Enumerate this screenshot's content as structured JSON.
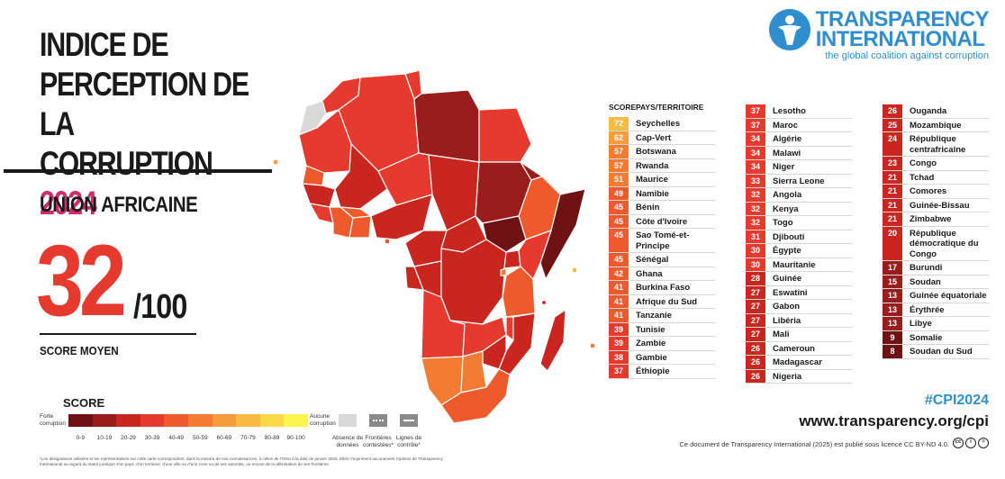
{
  "title": {
    "line1": "INDICE DE",
    "line2": "PERCEPTION DE LA",
    "line3_prefix": "CORRUPTION",
    "year": "2024"
  },
  "region": "UNION AFRICAINE",
  "average": {
    "score": "32",
    "max": "/100",
    "caption": "SCORE MOYEN"
  },
  "legend": {
    "title": "SCORE",
    "high_corruption": "Forte corruption",
    "low_corruption": "Aucune corruption",
    "ranges": [
      "0-9",
      "10-19",
      "20-29",
      "30-39",
      "40-49",
      "50-59",
      "60-69",
      "70-79",
      "80-89",
      "90-100"
    ],
    "colors": [
      "#6e1213",
      "#9a1d1d",
      "#c8261f",
      "#e63a2e",
      "#ef5a2d",
      "#f47b32",
      "#f69c3b",
      "#f8bb42",
      "#fad846",
      "#fcf54c"
    ],
    "no_data": "Absence de données",
    "disputed_borders": "Frontières contestées*",
    "control_lines": "Lignes de contrôle*",
    "no_data_color": "#d9d9d9"
  },
  "footnote": "*Les désignations utilisées et les représentations sur cette carte correspondent, dans la mesure de nos connaissances, à celles de l'ONU à la date de janvier 2025. Elles n'expriment aucunement l'opinion de Transparency International au regard du statut juridique d'un pays, d'un territoire, d'une ville ou d'une zone ou de ses autorités, ou encore de la délimitation de ses frontières.",
  "logo": {
    "line1": "TRANSPARENCY",
    "line2": "INTERNATIONAL",
    "tagline": "the global coalition against corruption"
  },
  "table_headers": {
    "score": "SCORE",
    "country": "PAYS/TERRITOIRE"
  },
  "columns": [
    [
      {
        "score": "72",
        "name": "Seychelles"
      },
      {
        "score": "62",
        "name": "Cap-Vert"
      },
      {
        "score": "57",
        "name": "Botswana"
      },
      {
        "score": "57",
        "name": "Rwanda"
      },
      {
        "score": "51",
        "name": "Maurice"
      },
      {
        "score": "49",
        "name": "Namibie"
      },
      {
        "score": "45",
        "name": "Bénin"
      },
      {
        "score": "45",
        "name": "Côte d'Ivoire"
      },
      {
        "score": "45",
        "name": "Sao Tomé-et-Principe"
      },
      {
        "score": "45",
        "name": "Sénégal"
      },
      {
        "score": "42",
        "name": "Ghana"
      },
      {
        "score": "41",
        "name": "Burkina Faso"
      },
      {
        "score": "41",
        "name": "Afrique du Sud"
      },
      {
        "score": "41",
        "name": "Tanzanie"
      },
      {
        "score": "39",
        "name": "Tunisie"
      },
      {
        "score": "39",
        "name": "Zambie"
      },
      {
        "score": "38",
        "name": "Gambie"
      },
      {
        "score": "37",
        "name": "Éthiopie"
      }
    ],
    [
      {
        "score": "37",
        "name": "Lesotho"
      },
      {
        "score": "37",
        "name": "Maroc"
      },
      {
        "score": "34",
        "name": "Algérie"
      },
      {
        "score": "34",
        "name": "Malawi"
      },
      {
        "score": "34",
        "name": "Niger"
      },
      {
        "score": "33",
        "name": "Sierra Leone"
      },
      {
        "score": "32",
        "name": "Angola"
      },
      {
        "score": "32",
        "name": "Kenya"
      },
      {
        "score": "32",
        "name": "Togo"
      },
      {
        "score": "31",
        "name": "Djibouti"
      },
      {
        "score": "30",
        "name": "Égypte"
      },
      {
        "score": "30",
        "name": "Mauritanie"
      },
      {
        "score": "28",
        "name": "Guinée"
      },
      {
        "score": "27",
        "name": "Eswatini"
      },
      {
        "score": "27",
        "name": "Gabon"
      },
      {
        "score": "27",
        "name": "Libéria"
      },
      {
        "score": "27",
        "name": "Mali"
      },
      {
        "score": "26",
        "name": "Cameroun"
      },
      {
        "score": "26",
        "name": "Madagascar"
      },
      {
        "score": "26",
        "name": "Nigeria"
      }
    ],
    [
      {
        "score": "26",
        "name": "Ouganda"
      },
      {
        "score": "25",
        "name": "Mozambique"
      },
      {
        "score": "24",
        "name": "République centrafricaine"
      },
      {
        "score": "23",
        "name": "Congo"
      },
      {
        "score": "21",
        "name": "Tchad"
      },
      {
        "score": "21",
        "name": "Comores"
      },
      {
        "score": "21",
        "name": "Guinée-Bissau"
      },
      {
        "score": "21",
        "name": "Zimbabwe"
      },
      {
        "score": "20",
        "name": "République démocratique du Congo"
      },
      {
        "score": "17",
        "name": "Burundi"
      },
      {
        "score": "15",
        "name": "Soudan"
      },
      {
        "score": "13",
        "name": "Guinée équatoriale"
      },
      {
        "score": "13",
        "name": "Érythrée"
      },
      {
        "score": "13",
        "name": "Libye"
      },
      {
        "score": "9",
        "name": "Somalie"
      },
      {
        "score": "8",
        "name": "Soudan du Sud"
      }
    ]
  ],
  "footer": {
    "hashtag": "#CPI2024",
    "url": "www.transparency.org/cpi",
    "license": "Ce document de Transparency International (2025) est publié sous licence CC BY-ND 4.0.",
    "cc_icons": [
      "cc",
      "by",
      "nd"
    ]
  }
}
